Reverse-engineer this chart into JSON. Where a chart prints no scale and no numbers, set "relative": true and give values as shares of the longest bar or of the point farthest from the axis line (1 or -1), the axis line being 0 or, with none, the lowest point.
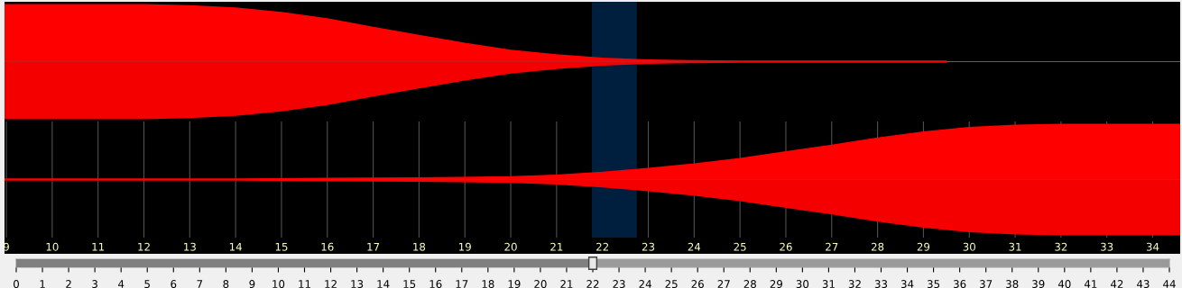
{
  "chart_data": [
    {
      "type": "area",
      "relative": true,
      "x": [
        8.96,
        12,
        13,
        14,
        15,
        16,
        17,
        18,
        19,
        20,
        21,
        22,
        23,
        24,
        25,
        29.5
      ],
      "xlim": [
        8.96,
        34.6
      ],
      "grid": "x",
      "tick_labels": false,
      "series": [
        {
          "color": "#ff0000",
          "values": [
            1,
            1,
            0.98,
            0.94,
            0.86,
            0.75,
            0.6,
            0.46,
            0.32,
            0.2,
            0.12,
            0.06,
            0.03,
            0.015,
            0.01,
            0.01
          ]
        },
        {
          "color": "#f40000",
          "values": [
            -1,
            -1,
            -0.98,
            -0.94,
            -0.86,
            -0.75,
            -0.6,
            -0.46,
            -0.32,
            -0.2,
            -0.12,
            -0.06,
            -0.03,
            -0.015,
            -0.01,
            -0.01
          ]
        }
      ],
      "ref_lines": [
        {
          "axis": "y",
          "value": 0,
          "color": "#606060"
        }
      ],
      "bands": [
        {
          "axis": "x",
          "from": 21.77,
          "to": 22.75,
          "color": "#001f3f"
        }
      ]
    },
    {
      "type": "area",
      "relative": true,
      "x": [
        8.96,
        14,
        16,
        18,
        20,
        21,
        22,
        23,
        24,
        25,
        26,
        27,
        28,
        29,
        30,
        31,
        32,
        34.6
      ],
      "xlim": [
        8.96,
        34.6
      ],
      "grid": "x",
      "tick_labels": "x",
      "xticks": [
        9,
        10,
        11,
        12,
        13,
        14,
        15,
        16,
        17,
        18,
        19,
        20,
        21,
        22,
        23,
        24,
        25,
        26,
        27,
        28,
        29,
        30,
        31,
        32,
        33,
        34
      ],
      "series": [
        {
          "color": "#ff0000",
          "values": [
            0.01,
            0.01,
            0.02,
            0.03,
            0.05,
            0.08,
            0.13,
            0.2,
            0.28,
            0.38,
            0.5,
            0.62,
            0.75,
            0.86,
            0.94,
            0.98,
            1,
            1
          ]
        },
        {
          "color": "#f40000",
          "values": [
            -0.01,
            -0.01,
            -0.02,
            -0.03,
            -0.05,
            -0.08,
            -0.13,
            -0.2,
            -0.28,
            -0.38,
            -0.5,
            -0.62,
            -0.75,
            -0.86,
            -0.94,
            -0.98,
            -1,
            -1
          ]
        }
      ],
      "ref_lines": [
        {
          "axis": "y",
          "value": 0,
          "color": "#606060"
        }
      ],
      "bands": [
        {
          "axis": "x",
          "from": 21.77,
          "to": 22.75,
          "color": "#001f3f"
        }
      ]
    },
    {
      "type": "bar",
      "orientation": "horizontal",
      "categories": [
        null
      ],
      "xlim": [
        0,
        44
      ],
      "xticks": [
        0,
        1,
        2,
        3,
        4,
        5,
        6,
        7,
        8,
        9,
        10,
        11,
        12,
        13,
        14,
        15,
        16,
        17,
        18,
        19,
        20,
        21,
        22,
        23,
        24,
        25,
        26,
        27,
        28,
        29,
        30,
        31,
        32,
        33,
        34,
        35,
        36,
        37,
        38,
        39,
        40,
        41,
        42,
        43,
        44
      ],
      "series": [
        {
          "color": "#808080",
          "values": [
            22
          ]
        }
      ]
    }
  ]
}
